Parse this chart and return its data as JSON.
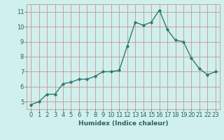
{
  "xlabel": "Humidex (Indice chaleur)",
  "ylabel": "",
  "x": [
    0,
    1,
    2,
    3,
    4,
    5,
    6,
    7,
    8,
    9,
    10,
    11,
    12,
    13,
    14,
    15,
    16,
    17,
    18,
    19,
    20,
    21,
    22,
    23
  ],
  "y": [
    4.8,
    5.0,
    5.5,
    5.5,
    6.2,
    6.3,
    6.5,
    6.5,
    6.7,
    7.0,
    7.0,
    7.1,
    8.7,
    10.3,
    10.1,
    10.3,
    11.1,
    9.8,
    9.1,
    9.0,
    7.9,
    7.2,
    6.8,
    7.0
  ],
  "line_color": "#2d7a6e",
  "marker": "D",
  "marker_size": 1.8,
  "bg_color": "#cff0ec",
  "grid_color": "#d08080",
  "tick_label_color": "#2d6060",
  "axis_label_color": "#2d6060",
  "ylim": [
    4.5,
    11.5
  ],
  "xlim": [
    -0.5,
    23.5
  ],
  "yticks": [
    5,
    6,
    7,
    8,
    9,
    10,
    11
  ],
  "xticks": [
    0,
    1,
    2,
    3,
    4,
    5,
    6,
    7,
    8,
    9,
    10,
    11,
    12,
    13,
    14,
    15,
    16,
    17,
    18,
    19,
    20,
    21,
    22,
    23
  ],
  "linewidth": 1.0,
  "xlabel_fontsize": 6.5,
  "tick_fontsize": 6.0
}
